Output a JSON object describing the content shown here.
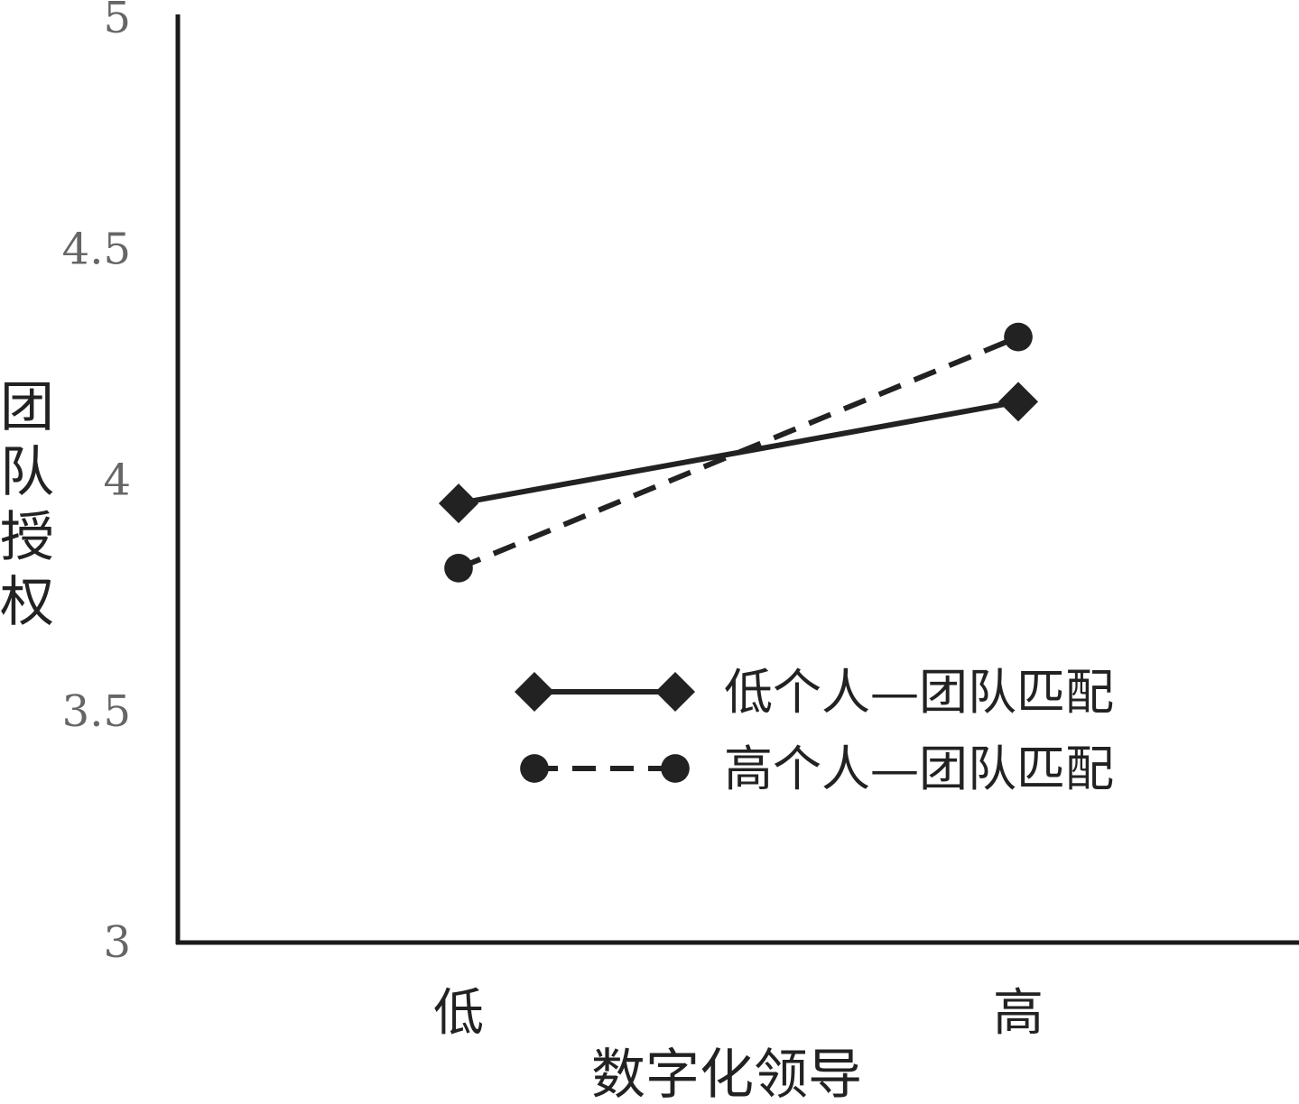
{
  "chart_data": {
    "type": "line",
    "title": "",
    "xlabel": "数字化领导",
    "ylabel": "团队授权",
    "categories": [
      "低",
      "高"
    ],
    "ylim": [
      3,
      5
    ],
    "yticks": [
      "3",
      "3.5",
      "4",
      "4.5",
      "5"
    ],
    "grid": false,
    "legend_position": "bottom-right",
    "series": [
      {
        "name": "低个人—团队匹配",
        "values": [
          3.95,
          4.17
        ],
        "marker": "diamond",
        "line_style": "solid",
        "color": "#222222"
      },
      {
        "name": "高个人—团队匹配",
        "values": [
          3.81,
          4.31
        ],
        "marker": "circle",
        "line_style": "dashed",
        "color": "#222222"
      }
    ]
  }
}
